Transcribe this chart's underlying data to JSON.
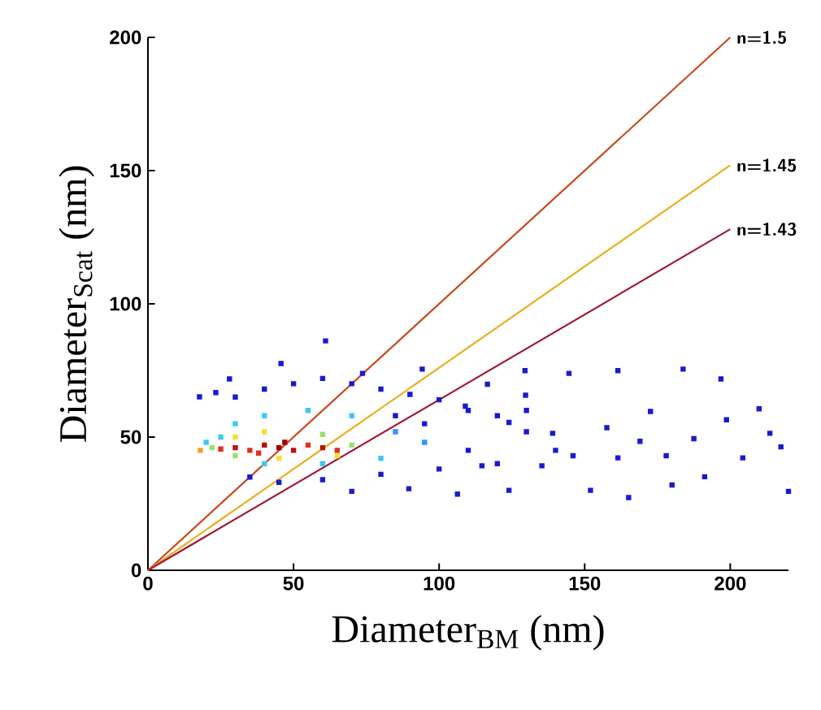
{
  "chart_data": {
    "type": "scatter",
    "xlabel": "Diameter$_{BM}$ (nm)",
    "ylabel": "Diameter$_{Scat}$ (nm)",
    "xlim": [
      0,
      220
    ],
    "ylim": [
      0,
      200
    ],
    "xticks": [
      0,
      50,
      100,
      150,
      200
    ],
    "yticks": [
      0,
      50,
      100,
      150,
      200
    ],
    "series": [
      {
        "marker": "square",
        "x": [
          17.7,
          23.3,
          28,
          45.7,
          61,
          73.7,
          94.2,
          116.6,
          129.5,
          144.6,
          161.4,
          183.8,
          196.8,
          209.9,
          217.4,
          220,
          165.1,
          152,
          124,
          106.3,
          89.6,
          70,
          180,
          191.2,
          204.3,
          172.6,
          157.6,
          139,
          135.3,
          114.7,
          124,
          109,
          161.4,
          187.5,
          213.6,
          178,
          146,
          198.7,
          169,
          129.7,
          30,
          40,
          50,
          60,
          70,
          80,
          90,
          100,
          110,
          120,
          130,
          35,
          45,
          60,
          80,
          100,
          120,
          140,
          130,
          110,
          95,
          85,
          25,
          30,
          40,
          55,
          70,
          85,
          95,
          80,
          60,
          40,
          20,
          22,
          30,
          40,
          60,
          70,
          65,
          45,
          30,
          18,
          25,
          30,
          35,
          40,
          45,
          50,
          55,
          60,
          65,
          47,
          38
        ],
        "values": [
          65.1,
          66.7,
          71.8,
          77.6,
          86.1,
          73.9,
          75.5,
          69.8,
          74.9,
          73.9,
          74.9,
          75.5,
          71.8,
          60.6,
          46.3,
          29.6,
          27.3,
          30,
          30,
          28.6,
          30.6,
          29.6,
          32,
          35.1,
          42.2,
          59.6,
          53.5,
          51.4,
          39.2,
          39.2,
          55.5,
          61.6,
          42.2,
          49.4,
          51.4,
          43,
          43,
          56.5,
          48.4,
          65.7,
          65,
          68,
          70,
          72,
          70,
          68,
          66,
          64,
          60,
          58,
          52,
          35,
          33,
          34,
          36,
          38,
          40,
          45,
          60,
          45,
          55,
          58,
          50,
          55,
          58,
          60,
          58,
          52,
          48,
          42,
          40,
          40,
          48,
          46,
          50,
          52,
          51,
          47,
          43,
          42,
          43,
          45,
          45.5,
          46,
          45,
          47,
          46,
          45,
          47,
          46,
          45,
          48,
          44
        ],
        "colors": [
          "#1a1ad0",
          "#1a1ad0",
          "#1a1ad0",
          "#1a1ad0",
          "#1a1ad0",
          "#1a1ad0",
          "#1a1ad0",
          "#1a1ad0",
          "#1a1ad0",
          "#1a1ad0",
          "#1a1ad0",
          "#1a1ad0",
          "#1a1ad0",
          "#1a1ad0",
          "#1a1ad0",
          "#1a1ad0",
          "#1a1ad0",
          "#1a1ad0",
          "#1a1ad0",
          "#1a1ad0",
          "#1a1ad0",
          "#1a1ad0",
          "#1a1ad0",
          "#1a1ad0",
          "#1a1ad0",
          "#1a1ad0",
          "#1a1ad0",
          "#1a1ad0",
          "#1a1ad0",
          "#1a1ad0",
          "#1a1ad0",
          "#1a1ad0",
          "#1a1ad0",
          "#1a1ad0",
          "#1a1ad0",
          "#1a1ad0",
          "#1a1ad0",
          "#1a1ad0",
          "#1a1ad0",
          "#1a1ad0",
          "#1a1ad0",
          "#1a1ad0",
          "#1a1ad0",
          "#1a1ad0",
          "#1a1ad0",
          "#1a1ad0",
          "#1a1ad0",
          "#1a1ad0",
          "#1a1ad0",
          "#1a1ad0",
          "#1a1ad0",
          "#1a1ad0",
          "#1a1ad0",
          "#1a1ad0",
          "#1a1ad0",
          "#1a1ad0",
          "#1a1ad0",
          "#1a1ad0",
          "#1a1ad0",
          "#1a1ad0",
          "#1a1ad0",
          "#1a1ad0",
          "#40c8f0",
          "#40c8f0",
          "#40c8f0",
          "#40c8f0",
          "#40c8f0",
          "#3a90ff",
          "#3a90ff",
          "#40c8f0",
          "#40c8f0",
          "#40c8f0",
          "#40c8f0",
          "#9be070",
          "#f2e03a",
          "#f2e03a",
          "#9be070",
          "#9be070",
          "#f2e03a",
          "#f2e03a",
          "#9be070",
          "#f0a030",
          "#e0301e",
          "#c01010",
          "#e0301e",
          "#c01010",
          "#a00000",
          "#c01010",
          "#e0301e",
          "#c01010",
          "#e0301e",
          "#a00000",
          "#e0301e"
        ]
      },
      {
        "type": "line",
        "marker": "none",
        "name": "n=1.5",
        "color": "#c8481e",
        "x": [
          0,
          200
        ],
        "values": [
          0,
          200
        ]
      },
      {
        "type": "line",
        "marker": "none",
        "name": "n=1.45",
        "color": "#e8b020",
        "x": [
          0,
          200
        ],
        "values": [
          0,
          152
        ]
      },
      {
        "type": "line",
        "marker": "none",
        "name": "n=1.43",
        "color": "#a01838",
        "x": [
          0,
          200
        ],
        "values": [
          0,
          128
        ]
      }
    ]
  }
}
